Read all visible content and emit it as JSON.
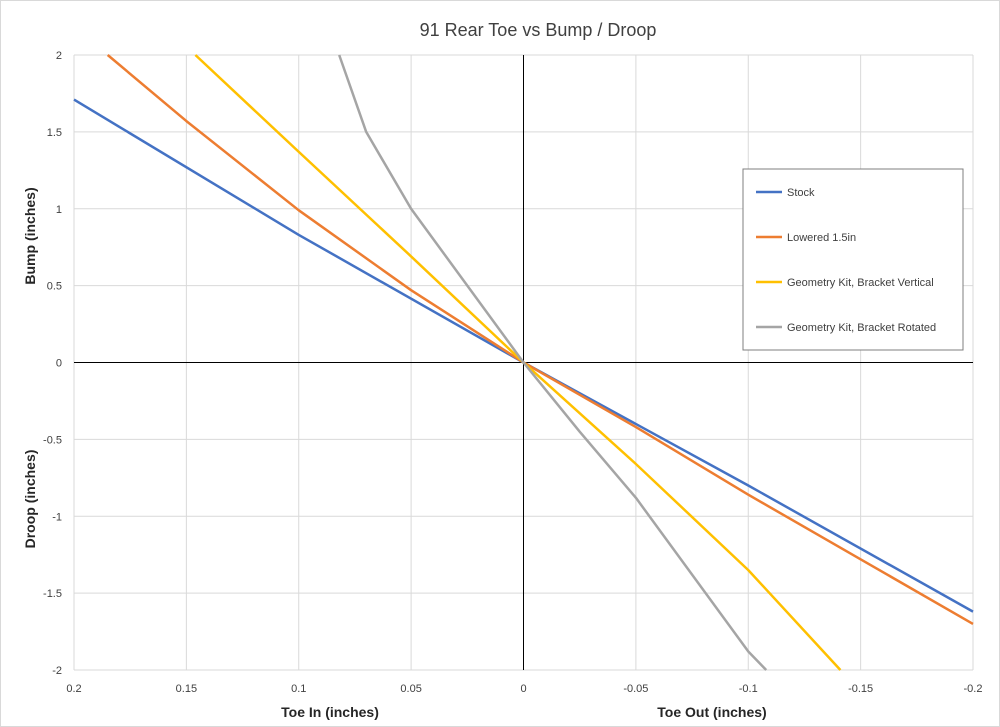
{
  "chart_data": {
    "type": "line",
    "title": "91 Rear Toe vs Bump / Droop",
    "xlabel_left": "Toe In (inches)",
    "xlabel_right": "Toe Out (inches)",
    "ylabel_top": "Bump (inches)",
    "ylabel_bottom": "Droop (inches)",
    "xlim": [
      0.2,
      -0.2
    ],
    "ylim": [
      -2,
      2
    ],
    "x_ticks": [
      0.2,
      0.15,
      0.1,
      0.05,
      0,
      -0.05,
      -0.1,
      -0.15,
      -0.2
    ],
    "x_tick_labels": [
      "0.2",
      "0.15",
      "0.1",
      "0.05",
      "0",
      "-0.05",
      "-0.1",
      "-0.15",
      "-0.2"
    ],
    "y_ticks": [
      2,
      1.5,
      1,
      0.5,
      0,
      -0.5,
      -1,
      -1.5,
      -2
    ],
    "y_tick_labels": [
      "2",
      "1.5",
      "1",
      "0.5",
      "0",
      "-0.5",
      "-1",
      "-1.5",
      "-2"
    ],
    "grid": true,
    "legend_position": "right",
    "series": [
      {
        "name": "Stock",
        "color": "#4472C4",
        "points": [
          [
            0.2,
            1.71
          ],
          [
            0.1,
            0.83
          ],
          [
            0,
            0
          ],
          [
            -0.1,
            -0.8
          ],
          [
            -0.2,
            -1.62
          ]
        ]
      },
      {
        "name": "Lowered 1.5in",
        "color": "#ED7D31",
        "points": [
          [
            0.185,
            2.0
          ],
          [
            0.15,
            1.57
          ],
          [
            0.1,
            0.99
          ],
          [
            0.05,
            0.47
          ],
          [
            0,
            0
          ],
          [
            -0.05,
            -0.42
          ],
          [
            -0.1,
            -0.86
          ],
          [
            -0.15,
            -1.28
          ],
          [
            -0.2,
            -1.7
          ]
        ]
      },
      {
        "name": "Geometry Kit, Bracket Vertical",
        "color": "#FFC000",
        "points": [
          [
            0.146,
            2.0
          ],
          [
            0.1,
            1.37
          ],
          [
            0.05,
            0.69
          ],
          [
            0,
            0
          ],
          [
            -0.05,
            -0.66
          ],
          [
            -0.1,
            -1.35
          ],
          [
            -0.141,
            -2.0
          ]
        ]
      },
      {
        "name": "Geometry Kit, Bracket Rotated",
        "color": "#A5A5A5",
        "points": [
          [
            0.082,
            2.0
          ],
          [
            0.07,
            1.5
          ],
          [
            0.05,
            1.0
          ],
          [
            0.025,
            0.5
          ],
          [
            0,
            0
          ],
          [
            -0.025,
            -0.45
          ],
          [
            -0.05,
            -0.88
          ],
          [
            -0.1,
            -1.88
          ],
          [
            -0.108,
            -2.0
          ]
        ]
      }
    ]
  }
}
